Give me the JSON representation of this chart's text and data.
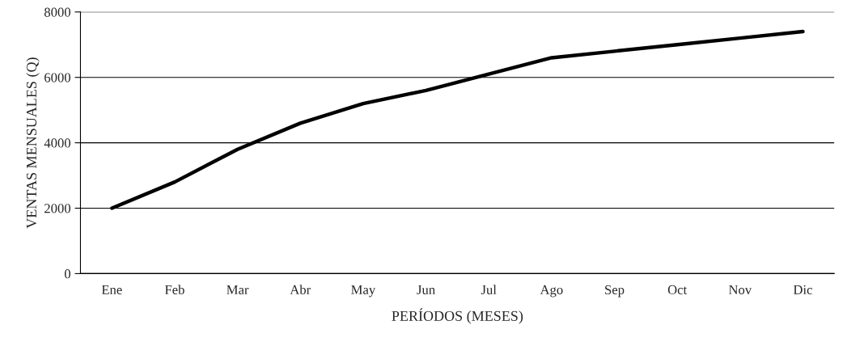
{
  "chart_data": {
    "type": "line",
    "xlabel": "PERÍODOS (MESES)",
    "ylabel": "VENTAS MENSUALES (Q)",
    "categories": [
      "Ene",
      "Feb",
      "Mar",
      "Abr",
      "May",
      "Jun",
      "Jul",
      "Ago",
      "Sep",
      "Oct",
      "Nov",
      "Dic"
    ],
    "series": [
      {
        "color": "#000000",
        "values": [
          2000,
          2800,
          3800,
          4600,
          5200,
          5600,
          6100,
          6600,
          6800,
          7000,
          7200,
          7400
        ]
      }
    ],
    "ylim": [
      0,
      8000
    ],
    "yticks": [
      0,
      2000,
      4000,
      6000,
      8000
    ],
    "grid": "y",
    "marker": "none",
    "line_style": "solid"
  }
}
